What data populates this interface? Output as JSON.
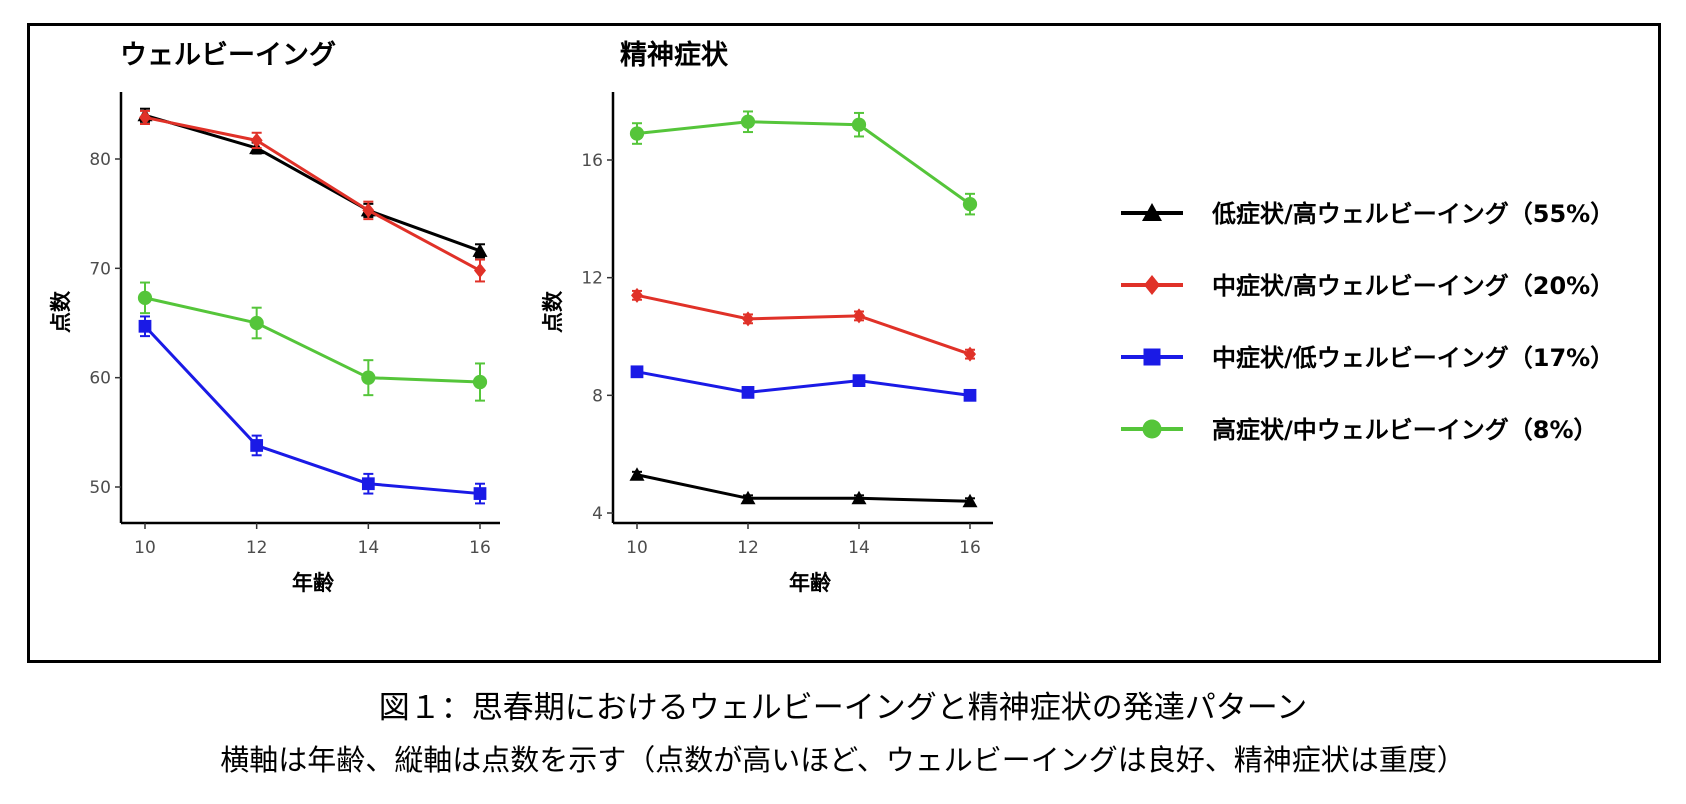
{
  "chart_data": [
    {
      "type": "line",
      "title": "ウェルビーイング",
      "xlabel": "年齢",
      "ylabel": "点数",
      "x": [
        10,
        12,
        14,
        16
      ],
      "xticks": [
        "10",
        "12",
        "14",
        "16"
      ],
      "yticks": [
        "50",
        "60",
        "70",
        "80"
      ],
      "ylim": [
        46.5,
        86
      ],
      "xlim": [
        9.6,
        16.4
      ],
      "grid": false,
      "error_bars": true,
      "series": [
        {
          "name": "低症状/高ウェルビーイング（55%）",
          "color": "#000000",
          "marker": "triangle",
          "values": [
            84.0,
            81.0,
            75.3,
            71.6
          ],
          "err": [
            0.6,
            0.5,
            0.6,
            0.6
          ]
        },
        {
          "name": "中症状/高ウェルビーイング（20%）",
          "color": "#e03128",
          "marker": "diamond",
          "values": [
            83.8,
            81.7,
            75.3,
            69.8
          ],
          "err": [
            0.6,
            0.7,
            0.8,
            1.0
          ]
        },
        {
          "name": "中症状/低ウェルビーイング（17%）",
          "color": "#1a1ae6",
          "marker": "square",
          "values": [
            64.7,
            53.8,
            50.3,
            49.4
          ],
          "err": [
            0.9,
            0.9,
            0.9,
            0.9
          ]
        },
        {
          "name": "高症状/中ウェルビーイング（8%）",
          "color": "#55c53a",
          "marker": "circle",
          "values": [
            67.3,
            65.0,
            60.0,
            59.6
          ],
          "err": [
            1.4,
            1.4,
            1.6,
            1.7
          ]
        }
      ]
    },
    {
      "type": "line",
      "title": "精神症状",
      "xlabel": "年齢",
      "ylabel": "点数",
      "x": [
        10,
        12,
        14,
        16
      ],
      "xticks": [
        "10",
        "12",
        "14",
        "16"
      ],
      "yticks": [
        "4",
        "8",
        "12",
        "16"
      ],
      "ylim": [
        3.6,
        18.2
      ],
      "xlim": [
        9.6,
        16.4
      ],
      "grid": false,
      "error_bars": true,
      "series": [
        {
          "name": "低症状/高ウェルビーイング（55%）",
          "color": "#000000",
          "marker": "triangle",
          "values": [
            5.3,
            4.5,
            4.5,
            4.4
          ],
          "err": [
            0.1,
            0.1,
            0.1,
            0.1
          ]
        },
        {
          "name": "中症状/高ウェルビーイング（20%）",
          "color": "#e03128",
          "marker": "diamond",
          "values": [
            11.4,
            10.6,
            10.7,
            9.4
          ],
          "err": [
            0.15,
            0.15,
            0.15,
            0.15
          ]
        },
        {
          "name": "中症状/低ウェルビーイング（17%）",
          "color": "#1a1ae6",
          "marker": "square",
          "values": [
            8.8,
            8.1,
            8.5,
            8.0
          ],
          "err": [
            0.15,
            0.15,
            0.15,
            0.15
          ]
        },
        {
          "name": "高症状/中ウェルビーイング（8%）",
          "color": "#55c53a",
          "marker": "circle",
          "values": [
            16.9,
            17.3,
            17.2,
            14.5
          ],
          "err": [
            0.35,
            0.35,
            0.4,
            0.35
          ]
        }
      ]
    }
  ],
  "legend": {
    "placement": "right",
    "items": [
      {
        "label": "低症状/高ウェルビーイング（55%）",
        "color": "#000000",
        "marker": "triangle"
      },
      {
        "label": "中症状/高ウェルビーイング（20%）",
        "color": "#e03128",
        "marker": "diamond"
      },
      {
        "label": "中症状/低ウェルビーイング（17%）",
        "color": "#1a1ae6",
        "marker": "square"
      },
      {
        "label": "高症状/中ウェルビーイング（8%）",
        "color": "#55c53a",
        "marker": "circle"
      }
    ]
  },
  "caption": {
    "title": "図１：思春期におけるウェルビーイングと精神症状の発達パターン",
    "subtitle": "横軸は年齢、縦軸は点数を示す（点数が高いほど、ウェルビーイングは良好、精神症状は重度）"
  }
}
